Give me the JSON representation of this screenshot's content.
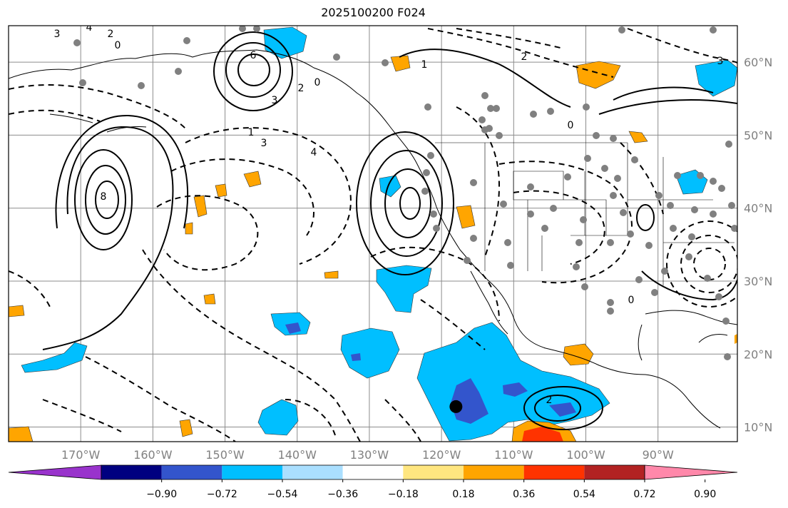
{
  "title": "2025100200 F024",
  "map": {
    "lon_range": [
      -180,
      -79
    ],
    "lat_range": [
      8,
      65
    ],
    "longitude_labels": [
      "170°W",
      "160°W",
      "150°W",
      "140°W",
      "130°W",
      "120°W",
      "110°W",
      "100°W",
      "90°W"
    ],
    "latitude_labels": [
      "60°N",
      "50°N",
      "40°N",
      "30°N",
      "20°N",
      "10°N"
    ],
    "gridlines": true,
    "contour_labels": [
      "3",
      "4",
      "2",
      "0",
      "6",
      "3",
      "3",
      "8",
      "4",
      "1",
      "2",
      "0",
      "1",
      "2",
      "3",
      "0",
      "0",
      "2"
    ],
    "marker": {
      "lon": -118,
      "lat": 12.8
    }
  },
  "colorbar": {
    "colors": [
      "#9933cc",
      "#000080",
      "#3355cc",
      "#00bfff",
      "#aadfff",
      "#ffffff",
      "#ffe680",
      "#ffa500",
      "#ff3300",
      "#b22222",
      "#ff88aa"
    ],
    "tick_labels": [
      "−0.90",
      "−0.72",
      "−0.54",
      "−0.36",
      "−0.18",
      "0.18",
      "0.36",
      "0.54",
      "0.72",
      "0.90"
    ]
  }
}
